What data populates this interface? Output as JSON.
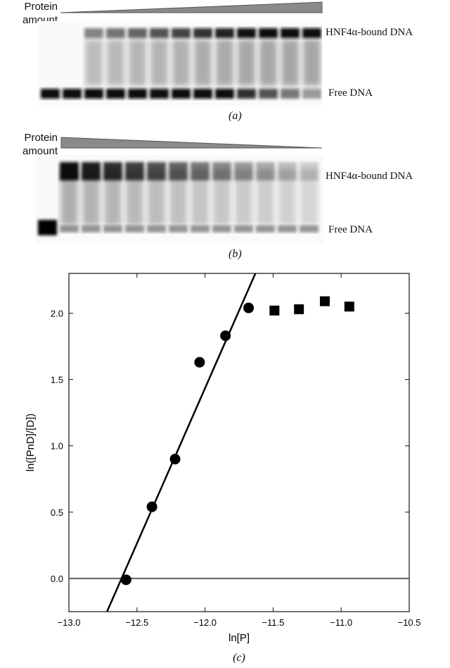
{
  "panel_a": {
    "protein_label": "Protein amount",
    "bound_label": "HNF4α-bound DNA",
    "free_label": "Free DNA",
    "caption": "(a)",
    "triangle": "increasing"
  },
  "panel_b": {
    "protein_label": "Protein amount",
    "bound_label": "HNF4α-bound DNA",
    "free_label": "Free DNA",
    "caption": "(b)",
    "triangle": "decreasing"
  },
  "chart_data": {
    "type": "scatter",
    "caption": "(c)",
    "xlabel": "ln[P]",
    "ylabel": "ln([PnD]/[D])",
    "xlim": [
      -13.0,
      -10.5
    ],
    "ylim": [
      -0.25,
      2.3
    ],
    "xticks": [
      "−13.0",
      "−12.5",
      "−12.0",
      "−11.5",
      "−11.0",
      "−10.5"
    ],
    "yticks": [
      "0.0",
      "0.5",
      "1.0",
      "1.5",
      "2.0"
    ],
    "grid": false,
    "series": [
      {
        "marker": "circle",
        "x": [
          -12.58,
          -12.39,
          -12.22,
          -12.04,
          -11.85,
          -11.68
        ],
        "y": [
          -0.01,
          0.54,
          0.9,
          1.63,
          1.83,
          2.04
        ]
      },
      {
        "marker": "square",
        "x": [
          -11.49,
          -11.31,
          -11.12,
          -10.94
        ],
        "y": [
          2.02,
          2.03,
          2.09,
          2.05
        ]
      }
    ],
    "fit_line": {
      "x": [
        -12.72,
        -11.63
      ],
      "y": [
        -0.25,
        2.3
      ]
    },
    "baseline_y": 0.0
  }
}
